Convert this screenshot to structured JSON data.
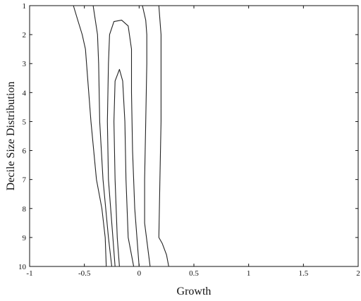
{
  "chart_data": {
    "type": "contour",
    "title": "",
    "xlabel": "Growth",
    "ylabel": "Decile Size Distribution",
    "xlim": [
      -1,
      2
    ],
    "ylim": [
      1,
      10
    ],
    "y_reversed": true,
    "grid": false,
    "x_ticks": [
      -1,
      -0.5,
      0,
      0.5,
      1,
      1.5,
      2
    ],
    "x_tick_labels": [
      "-1",
      "-0.5",
      "0",
      "0.5",
      "1",
      "1.5",
      "2"
    ],
    "y_ticks": [
      1,
      2,
      3,
      4,
      5,
      6,
      7,
      8,
      9,
      10
    ],
    "y_tick_labels": [
      "1",
      "2",
      "3",
      "4",
      "5",
      "6",
      "7",
      "8",
      "9",
      "10"
    ],
    "contours": [
      {
        "closed_top": false,
        "points": [
          [
            0.18,
            1
          ],
          [
            0.2,
            2
          ],
          [
            0.2,
            3
          ],
          [
            0.2,
            5
          ],
          [
            0.19,
            7
          ],
          [
            0.18,
            9
          ],
          [
            0.21,
            9.2
          ],
          [
            0.25,
            9.6
          ],
          [
            0.27,
            10
          ],
          [
            -0.3,
            10
          ],
          [
            -0.31,
            9
          ],
          [
            -0.34,
            8
          ],
          [
            -0.39,
            7
          ],
          [
            -0.44,
            5
          ],
          [
            -0.47,
            3.5
          ],
          [
            -0.49,
            2.5
          ],
          [
            -0.52,
            2
          ],
          [
            -0.56,
            1.5
          ],
          [
            -0.6,
            1
          ]
        ]
      },
      {
        "closed_top": false,
        "points": [
          [
            0.03,
            1
          ],
          [
            0.06,
            1.5
          ],
          [
            0.07,
            2
          ],
          [
            0.07,
            3
          ],
          [
            0.06,
            5
          ],
          [
            0.05,
            7
          ],
          [
            0.05,
            8.5
          ],
          [
            0.1,
            10
          ],
          [
            -0.25,
            10
          ],
          [
            -0.28,
            9
          ],
          [
            -0.33,
            7
          ],
          [
            -0.36,
            5
          ],
          [
            -0.37,
            3
          ],
          [
            -0.38,
            2
          ],
          [
            -0.4,
            1.5
          ],
          [
            -0.42,
            1
          ]
        ]
      },
      {
        "closed_top": true,
        "points": [
          [
            -0.22,
            10
          ],
          [
            -0.24,
            9
          ],
          [
            -0.28,
            7
          ],
          [
            -0.29,
            5
          ],
          [
            -0.28,
            3
          ],
          [
            -0.27,
            2
          ],
          [
            -0.23,
            1.55
          ],
          [
            -0.16,
            1.5
          ],
          [
            -0.1,
            1.7
          ],
          [
            -0.07,
            2.5
          ],
          [
            -0.07,
            4
          ],
          [
            -0.06,
            6
          ],
          [
            -0.04,
            8
          ],
          [
            0,
            10
          ]
        ]
      },
      {
        "closed_top": true,
        "points": [
          [
            -0.18,
            10
          ],
          [
            -0.2,
            9
          ],
          [
            -0.22,
            7
          ],
          [
            -0.23,
            5
          ],
          [
            -0.22,
            3.6
          ],
          [
            -0.18,
            3.2
          ],
          [
            -0.15,
            3.6
          ],
          [
            -0.13,
            5
          ],
          [
            -0.12,
            7
          ],
          [
            -0.1,
            9
          ],
          [
            -0.05,
            10
          ]
        ]
      }
    ]
  }
}
